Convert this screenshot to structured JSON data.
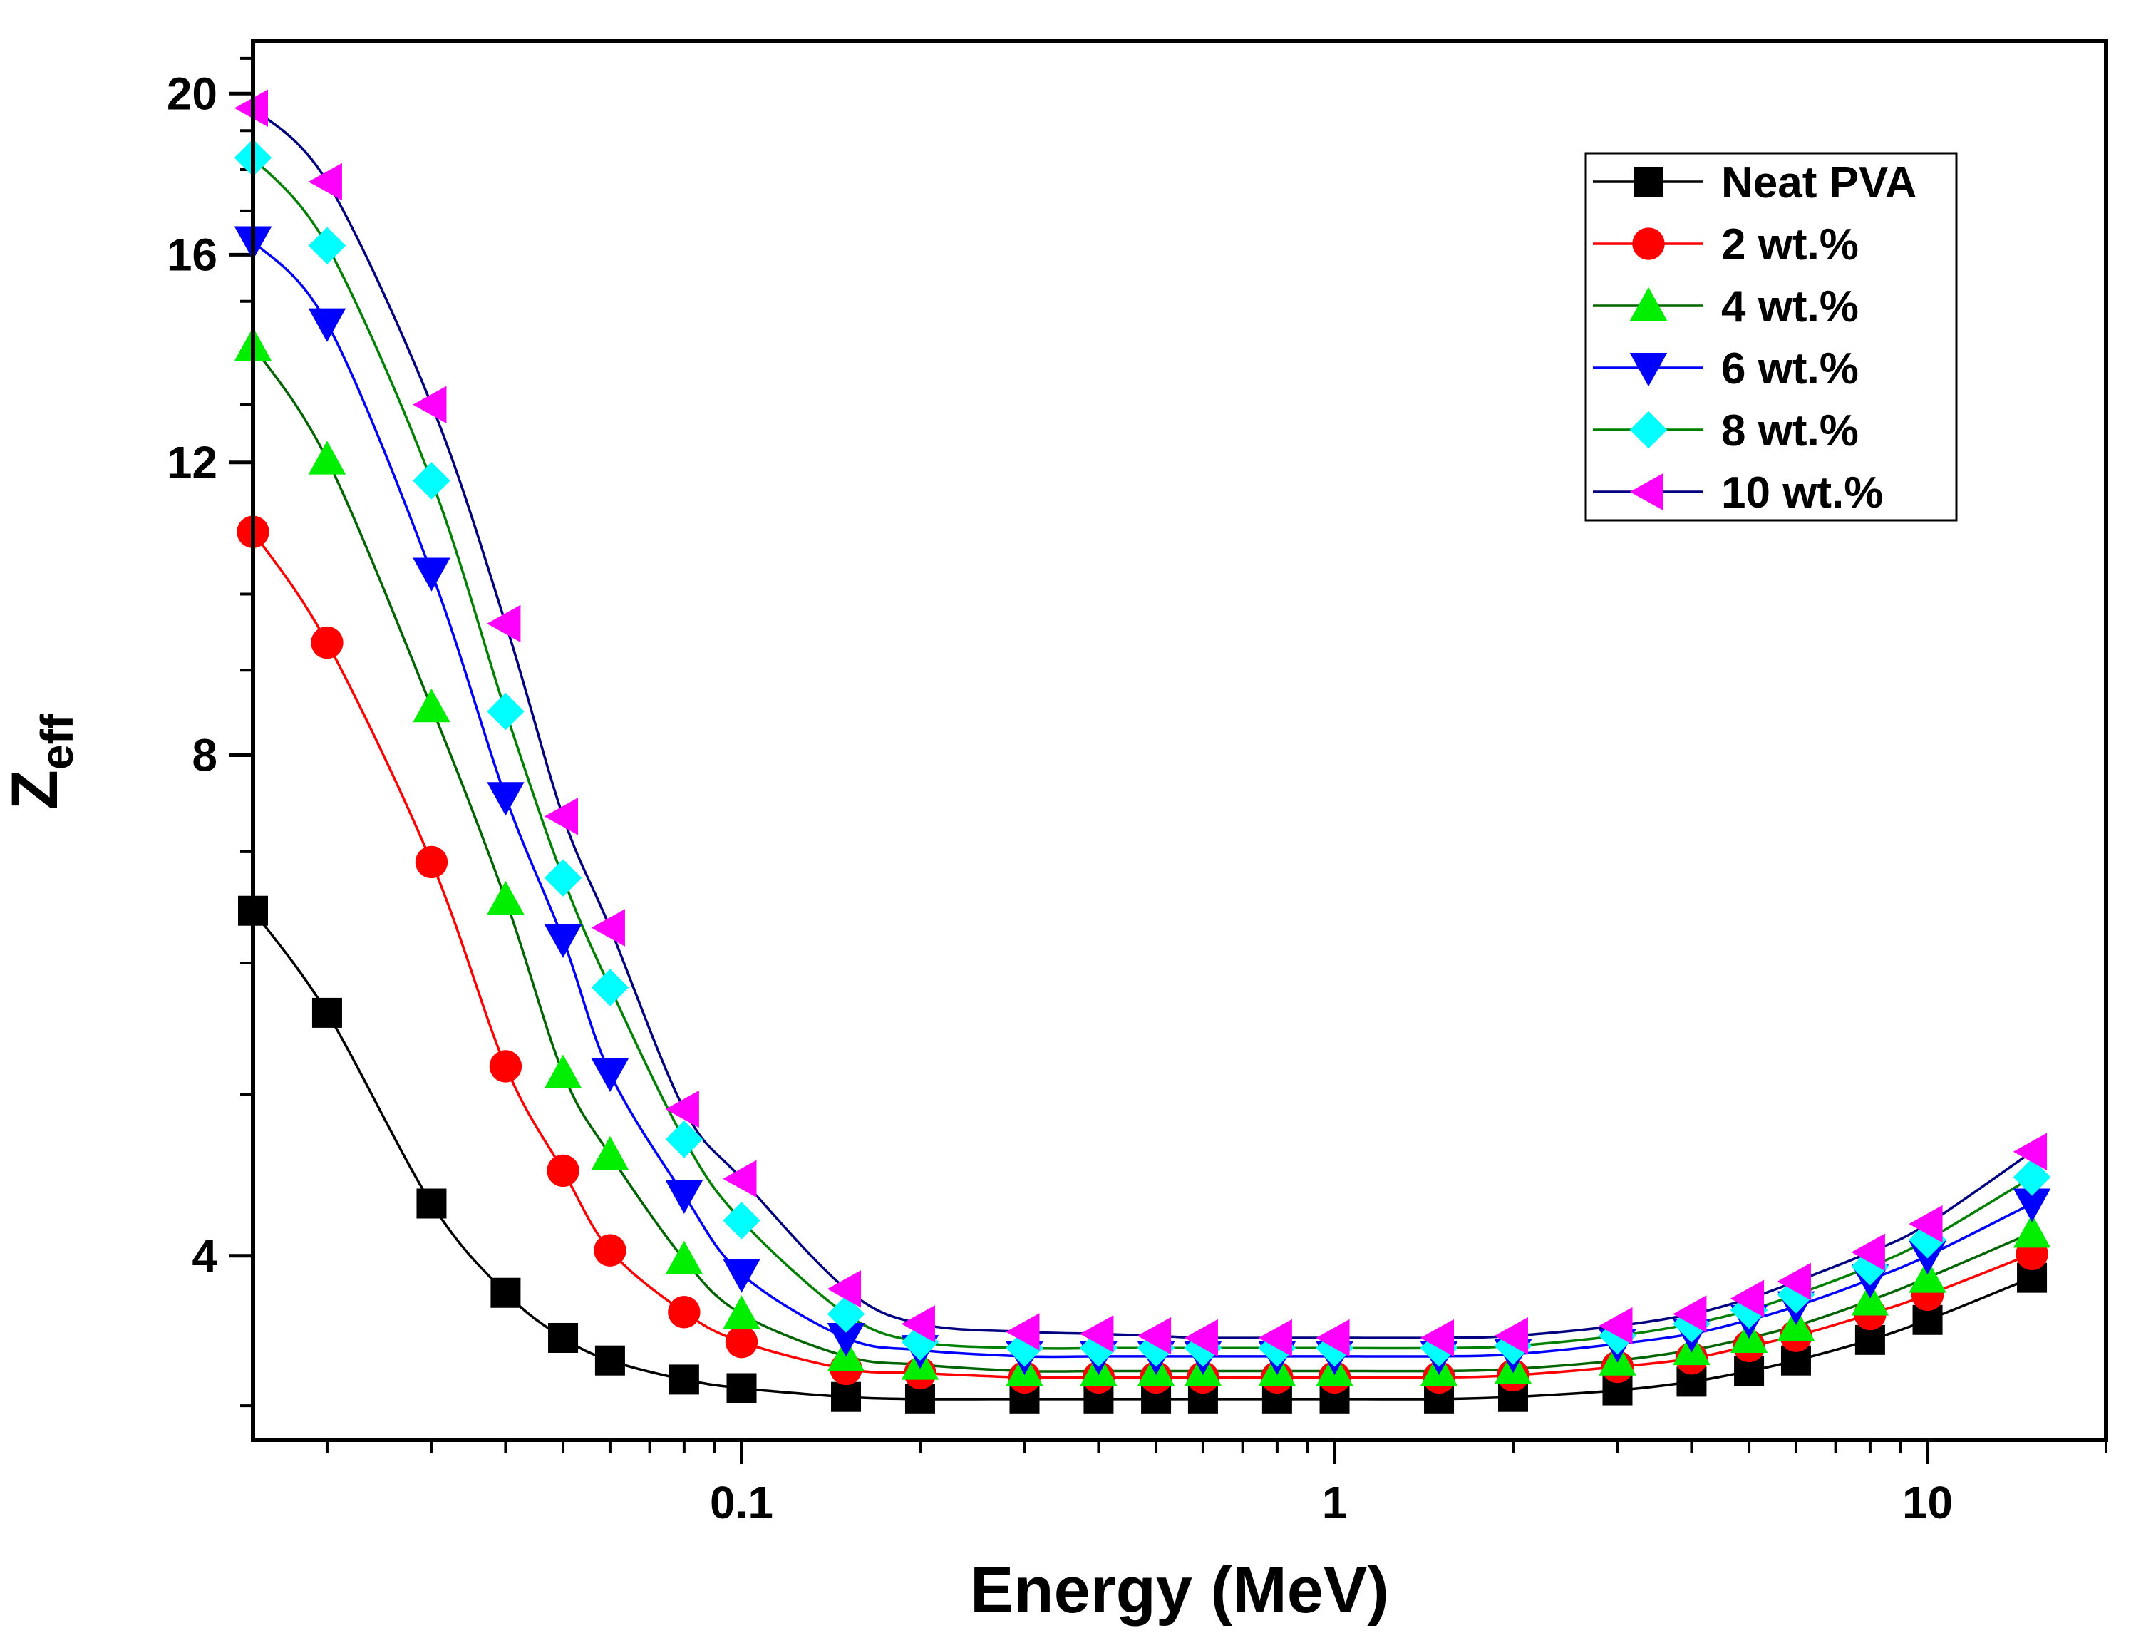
{
  "chart_data": {
    "type": "line",
    "x_scale": "log",
    "y_scale": "log",
    "xlabel": "Energy (MeV)",
    "ylabel_main": "Z",
    "ylabel_sub": "eff",
    "xlim": [
      0.015,
      20
    ],
    "ylim": [
      3.1,
      21.5
    ],
    "x_ticks": [
      0.1,
      1,
      10
    ],
    "x_tick_labels": [
      "0.1",
      "1",
      "10"
    ],
    "y_ticks": [
      4,
      8,
      12,
      16,
      20
    ],
    "y_tick_labels": [
      "4",
      "8",
      "12",
      "16",
      "20"
    ],
    "legend_position": "top-right",
    "x": [
      0.015,
      0.02,
      0.03,
      0.04,
      0.05,
      0.06,
      0.08,
      0.1,
      0.15,
      0.2,
      0.3,
      0.4,
      0.5,
      0.6,
      0.8,
      1,
      1.5,
      2,
      3,
      4,
      5,
      6,
      8,
      10,
      15
    ],
    "series": [
      {
        "name": "Neat PVA",
        "marker": "square",
        "marker_color": "#000000",
        "line_color": "#000000",
        "values": [
          6.45,
          5.6,
          4.3,
          3.8,
          3.57,
          3.46,
          3.37,
          3.33,
          3.29,
          3.28,
          3.28,
          3.28,
          3.28,
          3.28,
          3.28,
          3.28,
          3.28,
          3.29,
          3.32,
          3.36,
          3.41,
          3.46,
          3.56,
          3.66,
          3.88
        ]
      },
      {
        "name": "2 wt.%",
        "marker": "circle",
        "marker_color": "#ff0000",
        "line_color": "#ff0000",
        "values": [
          10.9,
          9.35,
          6.9,
          5.2,
          4.5,
          4.03,
          3.7,
          3.55,
          3.42,
          3.4,
          3.38,
          3.38,
          3.38,
          3.38,
          3.38,
          3.38,
          3.38,
          3.39,
          3.43,
          3.47,
          3.53,
          3.58,
          3.69,
          3.79,
          4.01
        ]
      },
      {
        "name": "4 wt.%",
        "marker": "triangle-up",
        "marker_color": "#00ee00",
        "line_color": "#006400",
        "values": [
          14.1,
          12.05,
          8.55,
          6.55,
          5.15,
          4.6,
          3.98,
          3.69,
          3.48,
          3.44,
          3.41,
          3.41,
          3.41,
          3.41,
          3.41,
          3.41,
          3.41,
          3.42,
          3.46,
          3.51,
          3.57,
          3.63,
          3.76,
          3.88,
          4.13
        ]
      },
      {
        "name": "6 wt.%",
        "marker": "triangle-down",
        "marker_color": "#0000ff",
        "line_color": "#0000ff",
        "values": [
          16.3,
          14.55,
          10.3,
          7.55,
          6.2,
          5.15,
          4.35,
          3.9,
          3.57,
          3.51,
          3.48,
          3.48,
          3.48,
          3.48,
          3.48,
          3.48,
          3.48,
          3.49,
          3.54,
          3.59,
          3.66,
          3.73,
          3.87,
          4.0,
          4.3
        ]
      },
      {
        "name": "8 wt.%",
        "marker": "diamond",
        "marker_color": "#00ffff",
        "line_color": "#008000",
        "values": [
          18.3,
          16.2,
          11.7,
          8.5,
          6.75,
          5.8,
          4.7,
          4.2,
          3.69,
          3.55,
          3.52,
          3.52,
          3.52,
          3.52,
          3.52,
          3.52,
          3.52,
          3.53,
          3.58,
          3.64,
          3.71,
          3.79,
          3.94,
          4.09,
          4.46
        ]
      },
      {
        "name": "10 wt.%",
        "marker": "triangle-left",
        "marker_color": "#ff00ff",
        "line_color": "#000080",
        "values": [
          19.6,
          17.7,
          13.0,
          9.6,
          7.35,
          6.3,
          4.9,
          4.45,
          3.82,
          3.64,
          3.6,
          3.59,
          3.58,
          3.57,
          3.57,
          3.57,
          3.57,
          3.58,
          3.63,
          3.69,
          3.77,
          3.86,
          4.02,
          4.18,
          4.62
        ]
      }
    ]
  }
}
